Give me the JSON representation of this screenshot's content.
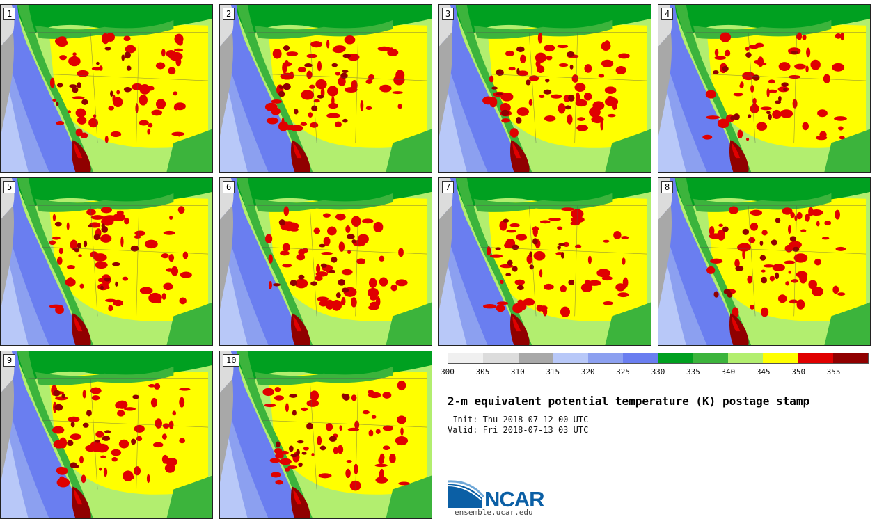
{
  "title": "2-m equivalent potential temperature (K) postage stamp",
  "init": " Init: Thu 2018-07-12 00 UTC",
  "valid": "Valid: Fri 2018-07-13 03 UTC",
  "site": "ensemble.ucar.edu",
  "logo_text": "NCAR",
  "members": [
    "1",
    "2",
    "3",
    "4",
    "5",
    "6",
    "7",
    "8",
    "9",
    "10"
  ],
  "colorbar": {
    "ticks": [
      "300",
      "305",
      "310",
      "315",
      "320",
      "325",
      "330",
      "335",
      "340",
      "345",
      "350",
      "355"
    ],
    "colors": [
      "#f0f0f0",
      "#dcdcdc",
      "#a8a8a8",
      "#b8c8f8",
      "#8ca0f0",
      "#6a7ef0",
      "#00a020",
      "#3cb43c",
      "#b2ee6f",
      "#ffff00",
      "#e00000",
      "#900000"
    ]
  }
}
